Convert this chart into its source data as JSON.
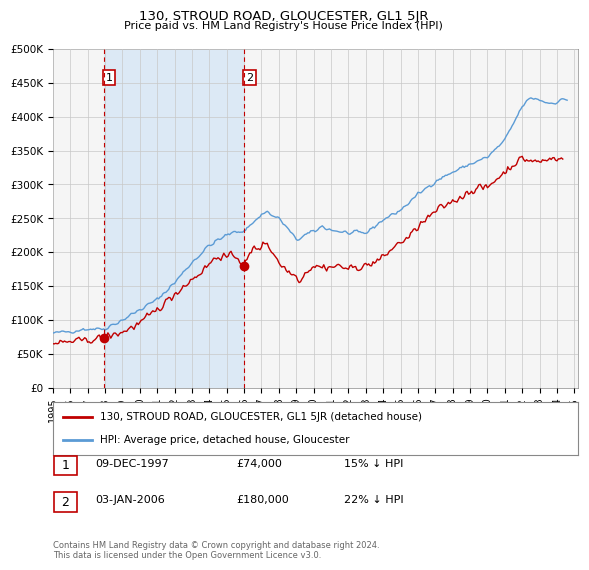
{
  "title": "130, STROUD ROAD, GLOUCESTER, GL1 5JR",
  "subtitle": "Price paid vs. HM Land Registry's House Price Index (HPI)",
  "x_start": 1995.0,
  "x_end": 2025.2,
  "y_min": 0,
  "y_max": 500000,
  "y_ticks": [
    0,
    50000,
    100000,
    150000,
    200000,
    250000,
    300000,
    350000,
    400000,
    450000,
    500000
  ],
  "y_tick_labels": [
    "£0",
    "£50K",
    "£100K",
    "£150K",
    "£200K",
    "£250K",
    "£300K",
    "£350K",
    "£400K",
    "£450K",
    "£500K"
  ],
  "hpi_color": "#5b9bd5",
  "price_color": "#c00000",
  "shade_color": "#dce9f5",
  "grid_color": "#c8c8c8",
  "bg_color": "#f5f5f5",
  "marker1_x": 1997.94,
  "marker1_y": 74000,
  "marker1_label": "1",
  "marker1_date": "09-DEC-1997",
  "marker1_price": "£74,000",
  "marker1_hpi": "15% ↓ HPI",
  "marker2_x": 2006.02,
  "marker2_y": 180000,
  "marker2_label": "2",
  "marker2_date": "03-JAN-2006",
  "marker2_price": "£180,000",
  "marker2_hpi": "22% ↓ HPI",
  "legend_line1": "130, STROUD ROAD, GLOUCESTER, GL1 5JR (detached house)",
  "legend_line2": "HPI: Average price, detached house, Gloucester",
  "footer": "Contains HM Land Registry data © Crown copyright and database right 2024.\nThis data is licensed under the Open Government Licence v3.0.",
  "x_ticks": [
    1995,
    1996,
    1997,
    1998,
    1999,
    2000,
    2001,
    2002,
    2003,
    2004,
    2005,
    2006,
    2007,
    2008,
    2009,
    2010,
    2011,
    2012,
    2013,
    2014,
    2015,
    2016,
    2017,
    2018,
    2019,
    2020,
    2021,
    2022,
    2023,
    2024,
    2025
  ]
}
